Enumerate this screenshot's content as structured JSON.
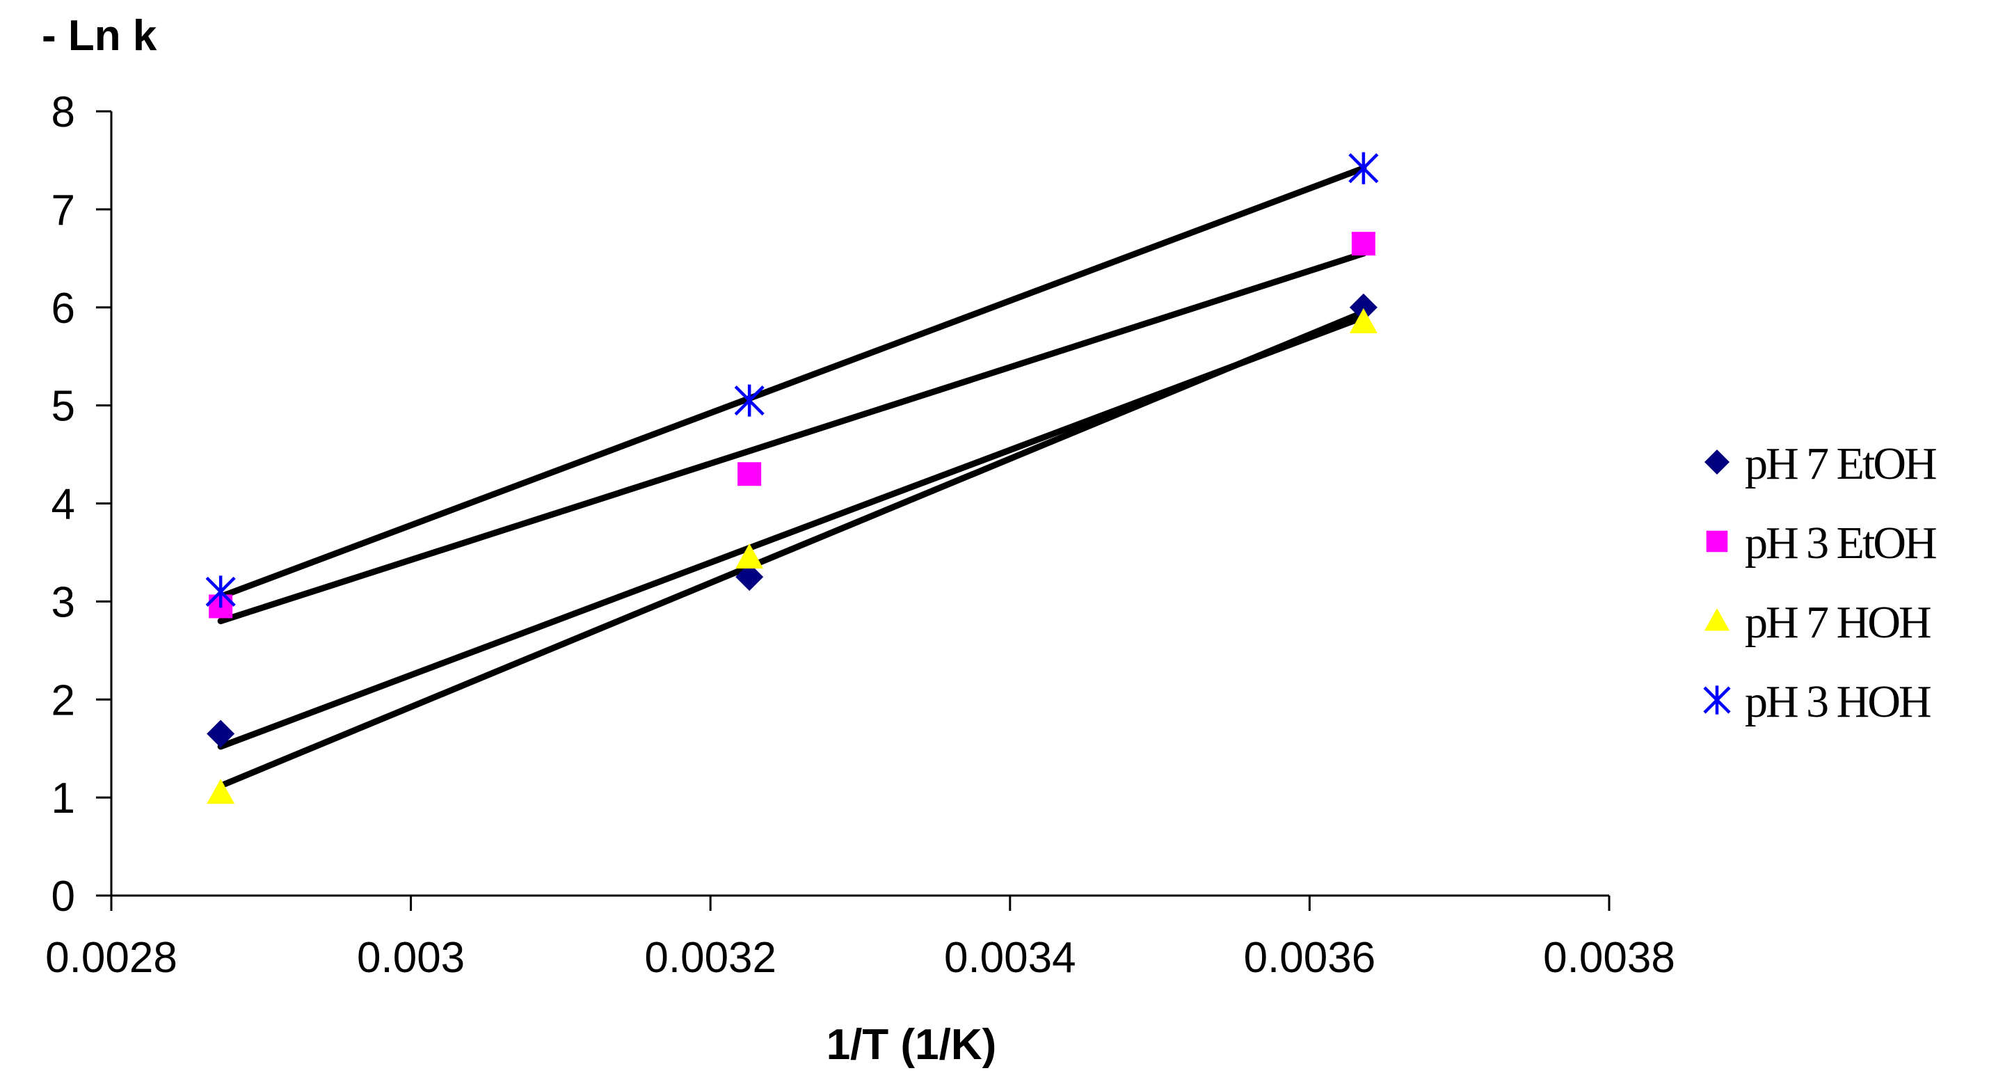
{
  "chart_data": {
    "type": "scatter",
    "ylabel": "- Ln k",
    "xlabel": "1/T (1/K)",
    "xlim": [
      0.0028,
      0.0038
    ],
    "ylim": [
      0,
      8
    ],
    "xticks": [
      "0.0028",
      "0.003",
      "0.0032",
      "0.0034",
      "0.0036",
      "0.0038"
    ],
    "yticks": [
      "0",
      "1",
      "2",
      "3",
      "4",
      "5",
      "6",
      "7",
      "8"
    ],
    "grid": false,
    "legend_position": "right",
    "series": [
      {
        "name": "pH 7 EtOH",
        "marker": "diamond",
        "color": "#000080",
        "x": [
          0.002873,
          0.003226,
          0.003636
        ],
        "y": [
          1.65,
          3.25,
          6.0
        ],
        "trendline": [
          [
            0.002873,
            1.12
          ],
          [
            0.003636,
            5.95
          ]
        ]
      },
      {
        "name": "pH 3 EtOH",
        "marker": "square",
        "color": "#FF00FF",
        "x": [
          0.002873,
          0.003226,
          0.003636
        ],
        "y": [
          2.95,
          4.3,
          6.65
        ],
        "trendline": [
          [
            0.002873,
            2.8
          ],
          [
            0.003636,
            6.55
          ]
        ]
      },
      {
        "name": "pH 7 HOH",
        "marker": "triangle",
        "color": "#FFFF00",
        "x": [
          0.002873,
          0.003226,
          0.003636
        ],
        "y": [
          1.05,
          3.45,
          5.85
        ],
        "trendline": [
          [
            0.002873,
            1.52
          ],
          [
            0.003636,
            5.9
          ]
        ]
      },
      {
        "name": "pH 3 HOH",
        "marker": "asterisk",
        "color": "#0000FF",
        "x": [
          0.002873,
          0.003226,
          0.003636
        ],
        "y": [
          3.1,
          5.05,
          7.42
        ],
        "trendline": [
          [
            0.002873,
            3.05
          ],
          [
            0.003636,
            7.42
          ]
        ]
      }
    ]
  }
}
